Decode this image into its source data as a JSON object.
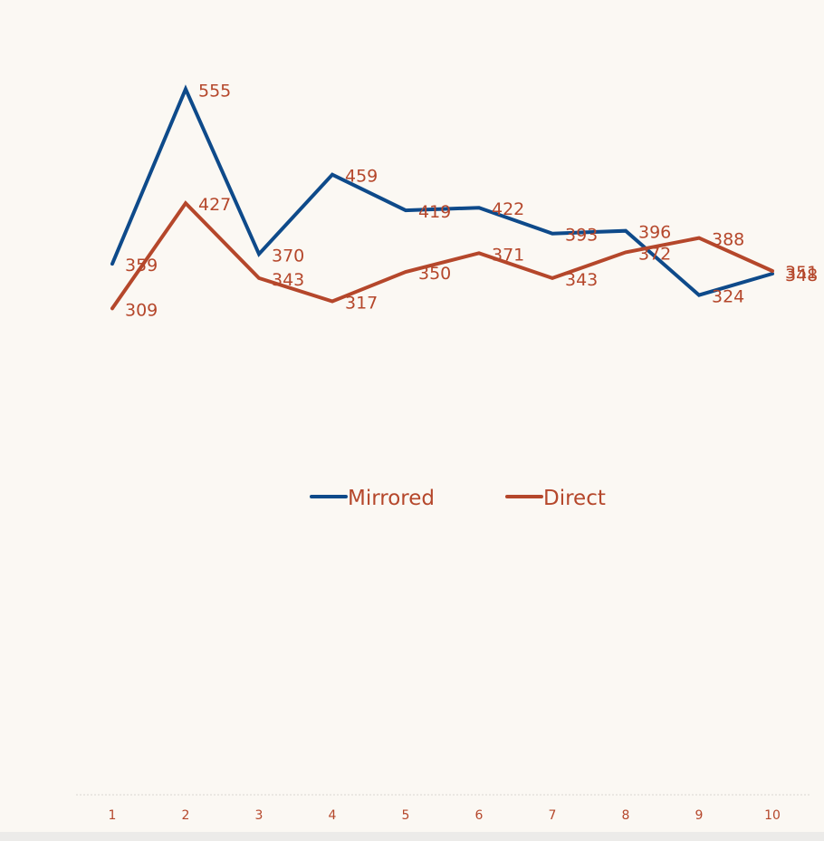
{
  "chart_data": {
    "type": "line",
    "title": "",
    "xlabel": "",
    "ylabel": "",
    "categories": [
      "1",
      "2",
      "3",
      "4",
      "5",
      "6",
      "7",
      "8",
      "9",
      "10"
    ],
    "ylim": [
      100,
      600
    ],
    "grid": false,
    "legend_position": "bottom-center",
    "series": [
      {
        "name": "Mirrored",
        "color": "#0e4a8a",
        "values": [
          359,
          555,
          370,
          459,
          419,
          422,
          393,
          396,
          324,
          348
        ],
        "labels": [
          "359",
          "555",
          "370",
          "459",
          "419",
          "422",
          "393",
          "396",
          "324",
          "348"
        ]
      },
      {
        "name": "Direct",
        "color": "#b5472b",
        "values": [
          309,
          427,
          343,
          317,
          350,
          371,
          343,
          372,
          388,
          351
        ],
        "labels": [
          "309",
          "427",
          "343",
          "317",
          "350",
          "371",
          "343",
          "372",
          "388",
          "351"
        ]
      }
    ],
    "label_color": "#b5472b",
    "axis_color": "#d9d6d0"
  }
}
